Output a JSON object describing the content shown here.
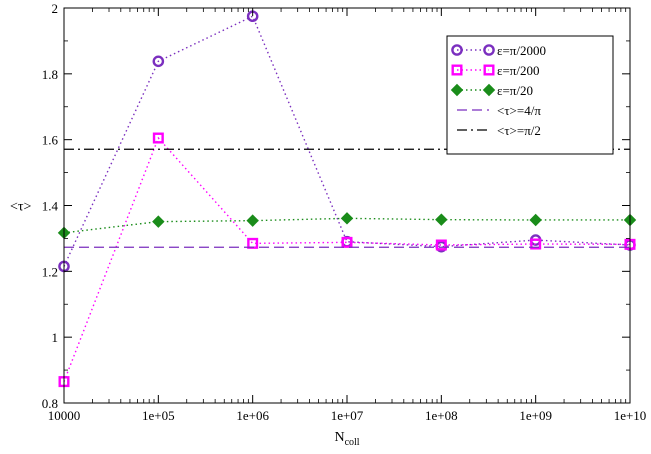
{
  "chart_data": {
    "type": "line",
    "xscale": "log",
    "x_ticks": [
      "10000",
      "1e+05",
      "1e+06",
      "1e+07",
      "1e+08",
      "1e+09",
      "1e+10"
    ],
    "x_tick_values": [
      10000,
      100000,
      1000000,
      10000000,
      100000000,
      1000000000,
      10000000000
    ],
    "y_ticks": [
      "0.8",
      "1",
      "1.2",
      "1.4",
      "1.6",
      "1.8",
      "2"
    ],
    "y_tick_values": [
      0.8,
      1.0,
      1.2,
      1.4,
      1.6,
      1.8,
      2.0
    ],
    "xlim": [
      10000,
      10000000000
    ],
    "ylim": [
      0.8,
      2.0
    ],
    "xlabel": "N",
    "xlabel_sub": "coll",
    "ylabel": "<τ>",
    "grid": false,
    "legend_position": "top-right",
    "series": [
      {
        "name": "ε=π/2000",
        "color": "#7b2fbf",
        "marker": "circle",
        "line_style": "dotted",
        "x": [
          10000,
          100000,
          1000000,
          10000000,
          100000000,
          1000000000,
          10000000000
        ],
        "y": [
          1.215,
          1.838,
          1.975,
          1.29,
          1.275,
          1.295,
          1.28
        ]
      },
      {
        "name": "ε=π/200",
        "color": "#ff00ff",
        "marker": "square",
        "line_style": "dotted",
        "x": [
          10000,
          100000,
          1000000,
          10000000,
          100000000,
          1000000000,
          10000000000
        ],
        "y": [
          0.865,
          1.605,
          1.285,
          1.288,
          1.28,
          1.283,
          1.282
        ]
      },
      {
        "name": "ε=π/20",
        "color": "#1a8c1a",
        "marker": "diamond",
        "line_style": "dotted",
        "x": [
          10000,
          100000,
          1000000,
          10000000,
          100000000,
          1000000000,
          10000000000
        ],
        "y": [
          1.317,
          1.351,
          1.354,
          1.361,
          1.357,
          1.356,
          1.356
        ]
      },
      {
        "name": "<τ>=4/π",
        "color": "#7b2fbf",
        "marker": "none",
        "line_style": "dashed",
        "x": [
          10000,
          10000000000
        ],
        "y": [
          1.2732,
          1.2732
        ]
      },
      {
        "name": "<τ>=π/2",
        "color": "#000000",
        "marker": "none",
        "line_style": "dashdot",
        "x": [
          10000,
          10000000000
        ],
        "y": [
          1.5708,
          1.5708
        ]
      }
    ]
  }
}
